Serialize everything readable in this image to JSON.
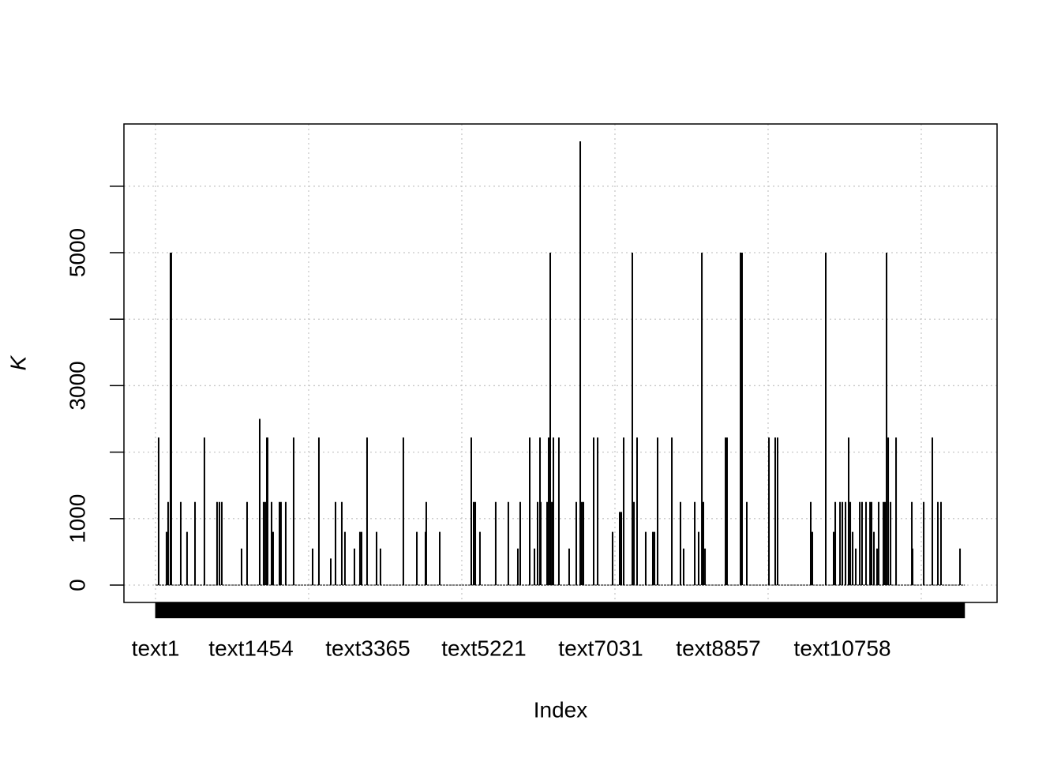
{
  "chart_data": {
    "type": "spike",
    "x_label": "Index",
    "y_label": "K",
    "xlim": [
      -412,
      10990
    ],
    "ylim": [
      -261,
      6936
    ],
    "xticks": [
      {
        "value": 1,
        "label": "text1"
      },
      {
        "value": 1248,
        "label": "text1454"
      },
      {
        "value": 2773,
        "label": "text3365"
      },
      {
        "value": 4289,
        "label": "text5221"
      },
      {
        "value": 5815,
        "label": "text7031"
      },
      {
        "value": 7351,
        "label": "text8857"
      },
      {
        "value": 8970,
        "label": "text10758"
      }
    ],
    "n_items": 10570,
    "xgrid": [
      0,
      2000,
      4000,
      6000,
      8000,
      10000
    ],
    "yticks": [
      0,
      1000,
      3000,
      5000
    ],
    "yminor": [
      2000,
      4000,
      6000
    ],
    "grid": true,
    "color": "#000000",
    "x": [
      41,
      144,
      165,
      196,
      206,
      330,
      412,
      516,
      639,
      804,
      835,
      866,
      1124,
      1196,
      1361,
      1412,
      1433,
      1454,
      1464,
      1516,
      1536,
      1619,
      1639,
      1701,
      1804,
      2052,
      2134,
      2289,
      2351,
      2433,
      2474,
      2598,
      2670,
      2691,
      2763,
      2887,
      2938,
      3237,
      3413,
      3526,
      3536,
      3712,
      4124,
      4155,
      4176,
      4237,
      4443,
      4608,
      4732,
      4763,
      4887,
      4949,
      4990,
      5021,
      5031,
      5114,
      5134,
      5155,
      5176,
      5196,
      5268,
      5402,
      5495,
      5547,
      5567,
      5588,
      5722,
      5774,
      5969,
      6062,
      6083,
      6114,
      6227,
      6248,
      6289,
      6402,
      6495,
      6516,
      6557,
      6743,
      6856,
      6897,
      7042,
      7093,
      7135,
      7155,
      7176,
      7444,
      7464,
      7640,
      7660,
      7722,
      8011,
      8093,
      8124,
      8557,
      8578,
      8753,
      8856,
      8877,
      8939,
      8970,
      9011,
      9052,
      9073,
      9104,
      9145,
      9197,
      9227,
      9279,
      9331,
      9351,
      9382,
      9423,
      9444,
      9506,
      9526,
      9547,
      9568,
      9599,
      9671,
      9877,
      9887,
      10032,
      10145,
      10217,
      10258,
      10506
    ],
    "values": [
      2220,
      800,
      1250,
      5000,
      5000,
      1250,
      800,
      1250,
      2220,
      1250,
      1250,
      1250,
      550,
      1250,
      2500,
      1250,
      1250,
      2220,
      2220,
      1250,
      800,
      1250,
      1250,
      1250,
      2220,
      550,
      2220,
      400,
      1250,
      1250,
      800,
      550,
      800,
      800,
      2220,
      800,
      550,
      2220,
      800,
      800,
      1250,
      800,
      2220,
      1250,
      1250,
      800,
      1250,
      1250,
      550,
      1250,
      2220,
      550,
      1250,
      2220,
      1250,
      1250,
      2220,
      5000,
      1250,
      2220,
      2220,
      550,
      1250,
      6675,
      1250,
      1250,
      2220,
      2220,
      800,
      1100,
      1100,
      2220,
      5000,
      1250,
      2220,
      800,
      800,
      800,
      2220,
      2220,
      1250,
      550,
      1250,
      800,
      5000,
      1250,
      550,
      2220,
      2220,
      5000,
      5000,
      1250,
      2220,
      2220,
      2220,
      1250,
      800,
      5000,
      800,
      1250,
      1250,
      1250,
      1250,
      2220,
      1250,
      800,
      550,
      1250,
      1250,
      1250,
      1250,
      1250,
      800,
      550,
      1250,
      1250,
      1250,
      5000,
      2220,
      1250,
      2220,
      1250,
      550,
      1250,
      2220,
      1250,
      1250,
      550
    ]
  }
}
